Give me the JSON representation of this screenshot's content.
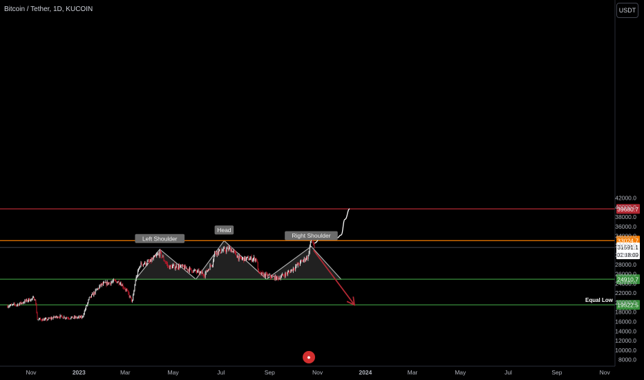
{
  "header": {
    "symbol": "Bitcoin / Tether, 1D, KUCOIN"
  },
  "currency_button": "USDT",
  "chart_data": {
    "type": "candlestick",
    "symbol": "Bitcoin / Tether",
    "interval": "1D",
    "exchange": "KUCOIN",
    "ylim": [
      7500,
      45500
    ],
    "y_ticks": [
      8000,
      10000,
      12000,
      14000,
      16000,
      18000,
      20000,
      22000,
      24000,
      26000,
      28000,
      30000,
      32000,
      34000,
      36000,
      38000,
      40000,
      42000
    ],
    "y_tick_labels": [
      "8000.0",
      "10000.0",
      "12000.0",
      "14000.0",
      "16000.0",
      "18000.0",
      "20000.0",
      "22000.0",
      "24000.0",
      "26000.0",
      "28000.0",
      "30000.0",
      "32000.0",
      "34000.0",
      "36000.0",
      "38000.0",
      "40000.0",
      "42000.0"
    ],
    "x_ticks": [
      {
        "date": "2022-11-01",
        "label": "Nov"
      },
      {
        "date": "2023-01-01",
        "label": "2023"
      },
      {
        "date": "2023-03-01",
        "label": "Mar"
      },
      {
        "date": "2023-05-01",
        "label": "May"
      },
      {
        "date": "2023-07-01",
        "label": "Jul"
      },
      {
        "date": "2023-09-01",
        "label": "Sep"
      },
      {
        "date": "2023-11-01",
        "label": "Nov"
      },
      {
        "date": "2024-01-01",
        "label": "2024"
      },
      {
        "date": "2024-03-01",
        "label": "Mar"
      },
      {
        "date": "2024-05-01",
        "label": "May"
      },
      {
        "date": "2024-07-01",
        "label": "Jul"
      },
      {
        "date": "2024-09-01",
        "label": "Sep"
      },
      {
        "date": "2024-11-01",
        "label": "Nov"
      }
    ],
    "last_price": {
      "value": 31591.1,
      "label": "31591.1",
      "countdown": "02:18:09"
    },
    "horizontal_levels": [
      {
        "price": 39680.7,
        "label": "39680.7",
        "color": "#b22833"
      },
      {
        "price": 33024.7,
        "label": "33024.7",
        "color": "#f57c00"
      },
      {
        "price": 24910.7,
        "label": "24910.7",
        "color": "#388e3c"
      },
      {
        "price": 19522.5,
        "label": "19522.5",
        "color": "#388e3c",
        "name": "Equal Low"
      }
    ],
    "price_path": [
      {
        "date": "2022-10-01",
        "close": 19300
      },
      {
        "date": "2022-10-15",
        "close": 19600
      },
      {
        "date": "2022-10-29",
        "close": 20600
      },
      {
        "date": "2022-11-06",
        "close": 20900
      },
      {
        "date": "2022-11-09",
        "close": 16500
      },
      {
        "date": "2022-11-20",
        "close": 16400
      },
      {
        "date": "2022-12-05",
        "close": 17100
      },
      {
        "date": "2022-12-20",
        "close": 16800
      },
      {
        "date": "2023-01-05",
        "close": 16900
      },
      {
        "date": "2023-01-14",
        "close": 20800
      },
      {
        "date": "2023-01-29",
        "close": 23700
      },
      {
        "date": "2023-02-16",
        "close": 24500
      },
      {
        "date": "2023-02-22",
        "close": 24300
      },
      {
        "date": "2023-03-03",
        "close": 22400
      },
      {
        "date": "2023-03-10",
        "close": 20200
      },
      {
        "date": "2023-03-14",
        "close": 24700
      },
      {
        "date": "2023-03-20",
        "close": 28000
      },
      {
        "date": "2023-04-01",
        "close": 28500
      },
      {
        "date": "2023-04-14",
        "close": 30400
      },
      {
        "date": "2023-04-25",
        "close": 27500
      },
      {
        "date": "2023-05-10",
        "close": 27600
      },
      {
        "date": "2023-06-10",
        "close": 25900
      },
      {
        "date": "2023-06-20",
        "close": 28300
      },
      {
        "date": "2023-06-23",
        "close": 30500
      },
      {
        "date": "2023-07-13",
        "close": 31300
      },
      {
        "date": "2023-07-25",
        "close": 29200
      },
      {
        "date": "2023-08-15",
        "close": 29200
      },
      {
        "date": "2023-08-18",
        "close": 26100
      },
      {
        "date": "2023-09-11",
        "close": 25100
      },
      {
        "date": "2023-09-25",
        "close": 26300
      },
      {
        "date": "2023-10-05",
        "close": 27700
      },
      {
        "date": "2023-10-20",
        "close": 29700
      },
      {
        "date": "2023-10-24",
        "close": 33900
      },
      {
        "date": "2023-10-28",
        "close": 31591.1
      }
    ],
    "pattern": {
      "name": "Head and Shoulders",
      "neckline_price": 24910.7,
      "labels": [
        "Left Shoulder",
        "Head",
        "Right Shoulder"
      ],
      "triangles": [
        {
          "label": "Left Shoulder",
          "left": {
            "date": "2023-03-14",
            "price": 24910.7
          },
          "apex": {
            "date": "2023-04-14",
            "price": 31200
          },
          "right": {
            "date": "2023-05-30",
            "price": 24910.7
          }
        },
        {
          "label": "Head",
          "left": {
            "date": "2023-05-30",
            "price": 24910.7
          },
          "apex": {
            "date": "2023-07-05",
            "price": 33000
          },
          "right": {
            "date": "2023-08-28",
            "price": 24910.7
          }
        },
        {
          "label": "Right Shoulder",
          "left": {
            "date": "2023-08-28",
            "price": 24910.7
          },
          "apex": {
            "date": "2023-10-24",
            "price": 31800
          },
          "right": {
            "date": "2023-12-01",
            "price": 24910.7
          }
        }
      ]
    },
    "projections": [
      {
        "name": "bearish",
        "color": "#b22833",
        "points": [
          {
            "date": "2023-10-27",
            "price": 31000
          },
          {
            "date": "2023-12-18",
            "price": 19522.5
          }
        ]
      },
      {
        "name": "bullish",
        "color": "#ffffff",
        "points": [
          {
            "date": "2023-10-28",
            "price": 32500
          },
          {
            "date": "2023-11-06",
            "price": 33900
          },
          {
            "date": "2023-11-16",
            "price": 34700
          },
          {
            "date": "2023-11-26",
            "price": 33600
          },
          {
            "date": "2023-12-01",
            "price": 34200
          },
          {
            "date": "2023-12-06",
            "price": 37500
          },
          {
            "date": "2023-12-12",
            "price": 39700
          }
        ]
      }
    ]
  }
}
